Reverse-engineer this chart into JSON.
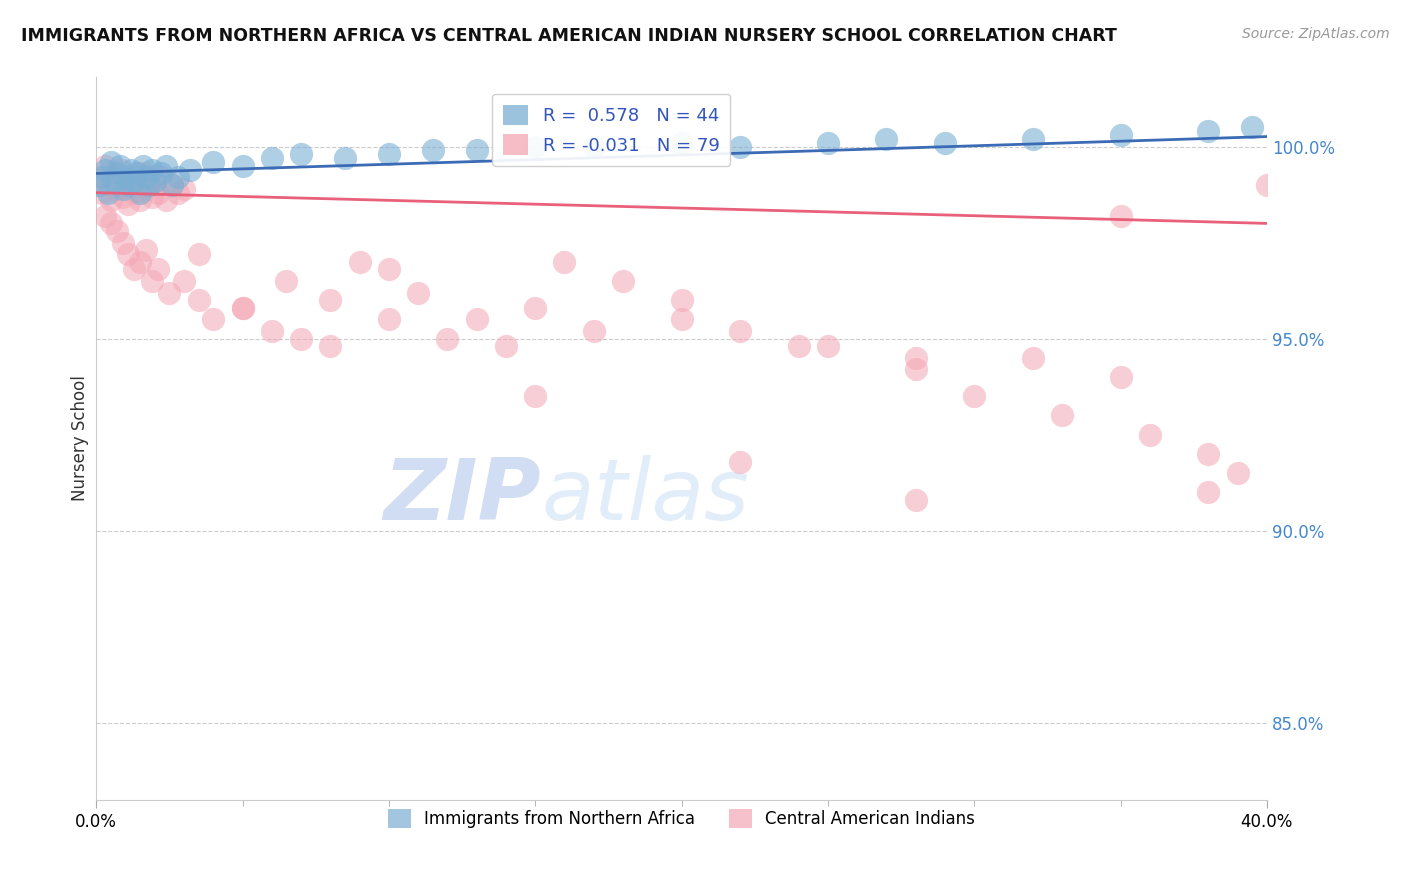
{
  "title": "IMMIGRANTS FROM NORTHERN AFRICA VS CENTRAL AMERICAN INDIAN NURSERY SCHOOL CORRELATION CHART",
  "source": "Source: ZipAtlas.com",
  "ylabel": "Nursery School",
  "right_yticks": [
    85.0,
    90.0,
    95.0,
    100.0
  ],
  "right_ytick_labels": [
    "85.0%",
    "90.0%",
    "95.0%",
    "100.0%"
  ],
  "xlim": [
    0.0,
    40.0
  ],
  "ylim": [
    83.0,
    101.8
  ],
  "legend_blue_r": "0.578",
  "legend_blue_n": "44",
  "legend_pink_r": "-0.031",
  "legend_pink_n": "79",
  "legend_label_blue": "Immigrants from Northern Africa",
  "legend_label_pink": "Central American Indians",
  "blue_color": "#7BAFD4",
  "pink_color": "#F4A7B5",
  "blue_line_color": "#3B6BB5",
  "pink_line_color": "#E8607A",
  "watermark_zip": "ZIP",
  "watermark_atlas": "atlas",
  "blue_scatter_x": [
    0.1,
    0.2,
    0.3,
    0.4,
    0.5,
    0.6,
    0.7,
    0.8,
    0.9,
    1.0,
    1.1,
    1.2,
    1.3,
    1.4,
    1.5,
    1.6,
    1.7,
    1.8,
    1.9,
    2.0,
    2.2,
    2.4,
    2.6,
    2.8,
    3.2,
    4.0,
    5.0,
    6.0,
    7.0,
    8.5,
    10.0,
    11.5,
    13.0,
    15.0,
    17.0,
    20.0,
    22.0,
    25.0,
    27.0,
    29.0,
    32.0,
    35.0,
    38.0,
    39.5
  ],
  "blue_scatter_y": [
    99.0,
    99.2,
    99.4,
    98.8,
    99.6,
    99.1,
    99.3,
    99.5,
    98.9,
    99.2,
    99.0,
    99.4,
    99.1,
    99.3,
    98.8,
    99.5,
    99.2,
    99.0,
    99.4,
    99.1,
    99.3,
    99.5,
    99.0,
    99.2,
    99.4,
    99.6,
    99.5,
    99.7,
    99.8,
    99.7,
    99.8,
    99.9,
    99.9,
    100.0,
    100.0,
    100.1,
    100.0,
    100.1,
    100.2,
    100.1,
    100.2,
    100.3,
    100.4,
    100.5
  ],
  "pink_scatter_x": [
    0.1,
    0.2,
    0.3,
    0.4,
    0.5,
    0.6,
    0.7,
    0.8,
    0.9,
    1.0,
    1.1,
    1.2,
    1.3,
    1.4,
    1.5,
    1.6,
    1.7,
    1.8,
    1.9,
    2.0,
    2.1,
    2.2,
    2.4,
    2.6,
    2.8,
    3.0,
    0.3,
    0.5,
    0.7,
    0.9,
    1.1,
    1.3,
    1.5,
    1.7,
    1.9,
    2.1,
    2.5,
    3.0,
    3.5,
    4.0,
    5.0,
    6.0,
    7.0,
    8.0,
    9.0,
    10.0,
    11.0,
    13.0,
    15.0,
    17.0,
    20.0,
    24.0,
    28.0,
    32.0,
    35.0,
    3.5,
    5.0,
    6.5,
    8.0,
    10.0,
    12.0,
    14.0,
    16.0,
    18.0,
    20.0,
    22.0,
    25.0,
    28.0,
    30.0,
    33.0,
    36.0,
    38.0,
    39.0,
    15.0,
    22.0,
    28.0,
    35.0,
    38.0,
    40.0
  ],
  "pink_scatter_y": [
    99.2,
    98.8,
    99.5,
    99.0,
    98.6,
    99.3,
    98.9,
    99.4,
    98.7,
    99.1,
    98.5,
    99.0,
    98.8,
    99.2,
    98.6,
    99.3,
    98.9,
    99.1,
    98.7,
    99.0,
    98.8,
    99.2,
    98.6,
    99.0,
    98.8,
    98.9,
    98.2,
    98.0,
    97.8,
    97.5,
    97.2,
    96.8,
    97.0,
    97.3,
    96.5,
    96.8,
    96.2,
    96.5,
    96.0,
    95.5,
    95.8,
    95.2,
    95.0,
    94.8,
    97.0,
    96.8,
    96.2,
    95.5,
    95.8,
    95.2,
    95.5,
    94.8,
    94.2,
    94.5,
    94.0,
    97.2,
    95.8,
    96.5,
    96.0,
    95.5,
    95.0,
    94.8,
    97.0,
    96.5,
    96.0,
    95.2,
    94.8,
    94.5,
    93.5,
    93.0,
    92.5,
    92.0,
    91.5,
    93.5,
    91.8,
    90.8,
    98.2,
    91.0,
    99.0
  ]
}
